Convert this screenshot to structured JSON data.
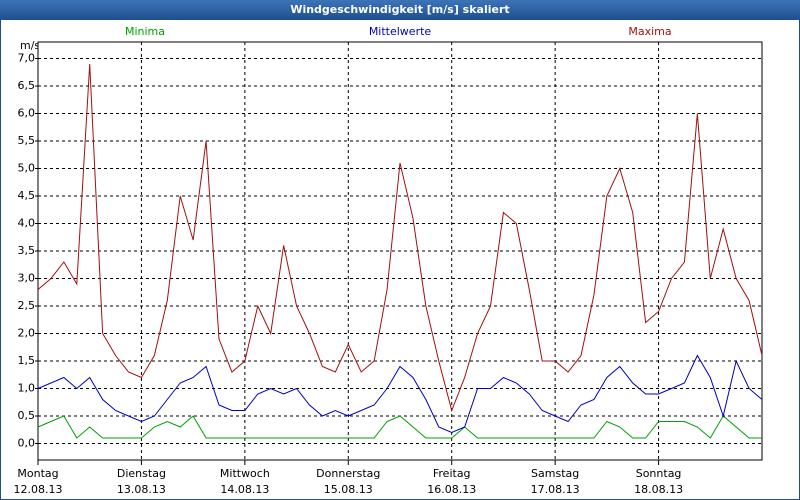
{
  "chart_data": {
    "type": "line",
    "title": "Windgeschwindigkeit [m/s] skaliert",
    "ylabel": "m/s",
    "x": [
      0,
      3,
      6,
      9,
      12,
      15,
      18,
      21,
      24,
      27,
      30,
      33,
      36,
      39,
      42,
      45,
      48,
      51,
      54,
      57,
      60,
      63,
      66,
      69,
      72,
      75,
      78,
      81,
      84,
      87,
      90,
      93,
      96,
      99,
      102,
      105,
      108,
      111,
      114,
      117,
      120,
      123,
      126,
      129,
      132,
      135,
      138,
      141,
      144,
      147,
      150,
      153,
      156,
      159,
      162,
      165,
      168
    ],
    "series": [
      {
        "name": "Minima",
        "color": "#00a000",
        "values": [
          0.3,
          0.4,
          0.5,
          0.1,
          0.3,
          0.1,
          0.1,
          0.1,
          0.1,
          0.3,
          0.4,
          0.3,
          0.5,
          0.1,
          0.1,
          0.1,
          0.1,
          0.1,
          0.1,
          0.1,
          0.1,
          0.1,
          0.1,
          0.1,
          0.1,
          0.1,
          0.1,
          0.4,
          0.5,
          0.3,
          0.1,
          0.1,
          0.1,
          0.3,
          0.1,
          0.1,
          0.1,
          0.1,
          0.1,
          0.1,
          0.1,
          0.1,
          0.1,
          0.1,
          0.4,
          0.3,
          0.1,
          0.1,
          0.4,
          0.4,
          0.4,
          0.3,
          0.1,
          0.5,
          0.3,
          0.1,
          0.1
        ]
      },
      {
        "name": "Mittelwerte",
        "color": "#0000c0",
        "values": [
          1.0,
          1.1,
          1.2,
          1.0,
          1.2,
          0.8,
          0.6,
          0.5,
          0.4,
          0.5,
          0.8,
          1.1,
          1.2,
          1.4,
          0.7,
          0.6,
          0.6,
          0.9,
          1.0,
          0.9,
          1.0,
          0.7,
          0.5,
          0.6,
          0.5,
          0.6,
          0.7,
          1.0,
          1.4,
          1.2,
          0.8,
          0.3,
          0.2,
          0.3,
          1.0,
          1.0,
          1.2,
          1.1,
          0.9,
          0.6,
          0.5,
          0.4,
          0.7,
          0.8,
          1.2,
          1.4,
          1.1,
          0.9,
          0.9,
          1.0,
          1.1,
          1.6,
          1.2,
          0.5,
          1.5,
          1.0,
          0.8
        ]
      },
      {
        "name": "Maxima",
        "color": "#a01010",
        "values": [
          2.8,
          3.0,
          3.3,
          2.9,
          6.9,
          2.0,
          1.6,
          1.3,
          1.2,
          1.6,
          2.6,
          4.5,
          3.7,
          5.5,
          1.9,
          1.3,
          1.5,
          2.5,
          2.0,
          3.6,
          2.5,
          2.0,
          1.4,
          1.3,
          1.8,
          1.3,
          1.5,
          2.8,
          5.1,
          4.1,
          2.5,
          1.5,
          0.6,
          1.2,
          2.0,
          2.5,
          4.2,
          4.0,
          2.8,
          1.5,
          1.5,
          1.3,
          1.6,
          2.7,
          4.5,
          5.0,
          4.2,
          2.2,
          2.4,
          3.0,
          3.3,
          6.0,
          3.0,
          3.9,
          3.0,
          2.6,
          1.6
        ]
      }
    ],
    "xlim": [
      0,
      168
    ],
    "xticks": [
      {
        "value": 0,
        "label": "Montag",
        "date": "12.08.13"
      },
      {
        "value": 24,
        "label": "Dienstag",
        "date": "13.08.13"
      },
      {
        "value": 48,
        "label": "Mittwoch",
        "date": "14.08.13"
      },
      {
        "value": 72,
        "label": "Donnerstag",
        "date": "15.08.13"
      },
      {
        "value": 96,
        "label": "Freitag",
        "date": "16.08.13"
      },
      {
        "value": 120,
        "label": "Samstag",
        "date": "17.08.13"
      },
      {
        "value": 144,
        "label": "Sonntag",
        "date": "18.08.13"
      }
    ],
    "ylim": [
      -0.3,
      7.3
    ],
    "yticks": [
      {
        "value": 0,
        "label": "0,0"
      },
      {
        "value": 0.5,
        "label": "0,5"
      },
      {
        "value": 1,
        "label": "1,0"
      },
      {
        "value": 1.5,
        "label": "1,5"
      },
      {
        "value": 2,
        "label": "2,0"
      },
      {
        "value": 2.5,
        "label": "2,5"
      },
      {
        "value": 3,
        "label": "3,0"
      },
      {
        "value": 3.5,
        "label": "3,5"
      },
      {
        "value": 4,
        "label": "4,0"
      },
      {
        "value": 4.5,
        "label": "4,5"
      },
      {
        "value": 5,
        "label": "5,0"
      },
      {
        "value": 5.5,
        "label": "5,5"
      },
      {
        "value": 6,
        "label": "6,0"
      },
      {
        "value": 6.5,
        "label": "6,5"
      },
      {
        "value": 7,
        "label": "7,0"
      }
    ],
    "grid": true
  }
}
